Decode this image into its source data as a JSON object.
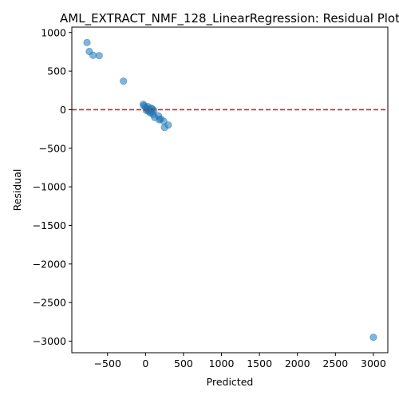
{
  "chart_data": {
    "type": "scatter",
    "title": "AML_EXTRACT_NMF_128_LinearRegression: Residual Plot",
    "xlabel": "Predicted",
    "ylabel": "Residual",
    "xlim": [
      -970,
      3190
    ],
    "ylim": [
      -3150,
      1070
    ],
    "xticks": [
      -500,
      0,
      500,
      1000,
      1500,
      2000,
      2500,
      3000
    ],
    "yticks": [
      1000,
      500,
      0,
      -500,
      -1000,
      -1500,
      -2000,
      -2500,
      -3000
    ],
    "grid": false,
    "reference_line": {
      "y": 0,
      "color": "#d62728",
      "style": "dashed"
    },
    "marker_color": "#1f77b4",
    "marker_alpha": 0.55,
    "points": [
      {
        "x": -770,
        "y": 870
      },
      {
        "x": -740,
        "y": 755
      },
      {
        "x": -690,
        "y": 705
      },
      {
        "x": -610,
        "y": 700
      },
      {
        "x": -290,
        "y": 370
      },
      {
        "x": -30,
        "y": 70
      },
      {
        "x": -20,
        "y": 50
      },
      {
        "x": 0,
        "y": 30
      },
      {
        "x": 10,
        "y": -10
      },
      {
        "x": 20,
        "y": 10
      },
      {
        "x": 30,
        "y": 40
      },
      {
        "x": 40,
        "y": -20
      },
      {
        "x": 50,
        "y": 0
      },
      {
        "x": 60,
        "y": -40
      },
      {
        "x": 70,
        "y": 20
      },
      {
        "x": 80,
        "y": -30
      },
      {
        "x": 90,
        "y": 10
      },
      {
        "x": 100,
        "y": -60
      },
      {
        "x": 110,
        "y": -10
      },
      {
        "x": 120,
        "y": -100
      },
      {
        "x": 170,
        "y": -80
      },
      {
        "x": 180,
        "y": -130
      },
      {
        "x": 200,
        "y": -120
      },
      {
        "x": 240,
        "y": -150
      },
      {
        "x": 250,
        "y": -230
      },
      {
        "x": 300,
        "y": -200
      },
      {
        "x": 3000,
        "y": -2950
      }
    ]
  }
}
